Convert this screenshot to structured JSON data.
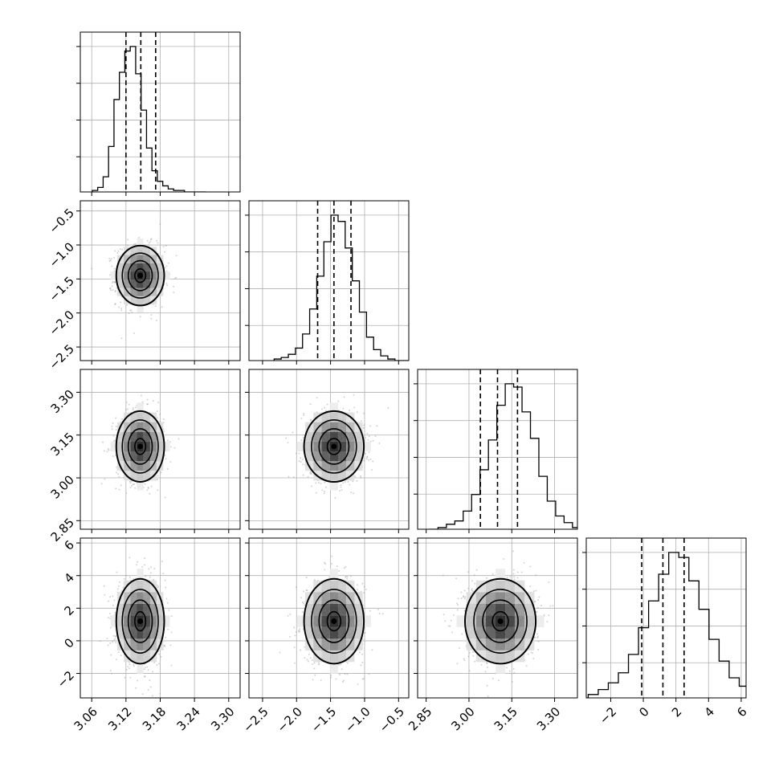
{
  "chart_data": {
    "type": "corner",
    "title": "",
    "parameters": [
      {
        "range": [
          3.04,
          3.32
        ],
        "ticks": [
          3.06,
          3.12,
          3.18,
          3.24,
          3.3
        ],
        "tick_labels": [
          "3.06",
          "3.12",
          "3.18",
          "3.24",
          "3.30"
        ],
        "peak": 3.145,
        "sigma": 0.021,
        "quantiles": [
          3.12,
          3.146,
          3.172
        ],
        "hist_counts": [
          1,
          3,
          10,
          30,
          61,
          79,
          93,
          96,
          78,
          54,
          29,
          14,
          7,
          4,
          2,
          1,
          1,
          0,
          0,
          0,
          0
        ]
      },
      {
        "range": [
          -2.7,
          -0.35
        ],
        "ticks": [
          -2.5,
          -2.0,
          -1.5,
          -1.0,
          -0.5
        ],
        "tick_labels": [
          "−2.5",
          "−2.0",
          "−1.5",
          "−1.0",
          "−0.5"
        ],
        "peak": -1.45,
        "sigma": 0.22,
        "quantiles": [
          -1.69,
          -1.45,
          -1.2
        ],
        "hist_counts": [
          1,
          2,
          4,
          8,
          17,
          33,
          54,
          76,
          93,
          89,
          72,
          51,
          31,
          15,
          7,
          3,
          1,
          0,
          0,
          0
        ]
      },
      {
        "range": [
          2.82,
          3.38
        ],
        "ticks": [
          2.85,
          3.0,
          3.15,
          3.3
        ],
        "tick_labels": [
          "2.85",
          "3.00",
          "3.15",
          "3.30"
        ],
        "peak": 3.11,
        "sigma": 0.062,
        "quantiles": [
          3.04,
          3.1,
          3.17
        ],
        "hist_counts": [
          0,
          1,
          3,
          5,
          11,
          21,
          36,
          54,
          75,
          88,
          86,
          71,
          55,
          32,
          17,
          8,
          4,
          1,
          1,
          0
        ]
      },
      {
        "range": [
          -3.5,
          6.3
        ],
        "ticks": [
          -2,
          0,
          2,
          4,
          6
        ],
        "tick_labels": [
          "−2",
          "0",
          "2",
          "4",
          "6"
        ],
        "peak": 1.2,
        "sigma": 1.3,
        "quantiles": [
          -0.1,
          1.2,
          2.5
        ],
        "hist_counts": [
          0,
          2,
          5,
          9,
          15,
          26,
          42,
          58,
          74,
          87,
          84,
          70,
          53,
          35,
          22,
          12,
          7,
          3,
          1,
          0
        ]
      }
    ],
    "ylim_ticks": {
      "1": [
        "−0.5",
        "−1.0",
        "−1.5",
        "−2.0",
        "−2.5"
      ],
      "2": [
        "3.30",
        "3.15",
        "3.00",
        "2.85"
      ],
      "3": [
        "6",
        "4",
        "2",
        "0",
        "−2"
      ]
    },
    "grid": true,
    "contour_levels": 4,
    "colors": {
      "line": "#000000",
      "grid": "#b0b0b0",
      "points": "#9e9e9e"
    }
  }
}
